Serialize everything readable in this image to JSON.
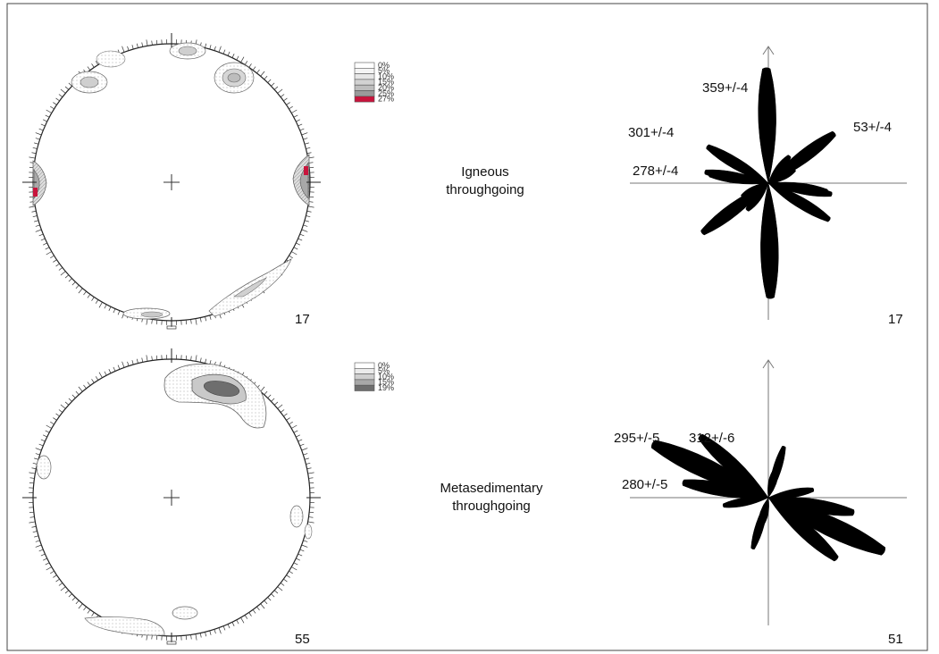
{
  "figure": {
    "panels": [
      {
        "label_lines": [
          "Igneous",
          "throughgoing"
        ],
        "stereonet_count": "17",
        "rose_count": "17",
        "legend": {
          "entries": [
            "0%",
            "5%",
            "10%",
            "15%",
            "20%",
            "25%",
            "27%"
          ],
          "colors": [
            "#ffffff",
            "#f4f4f4",
            "#e6e6e6",
            "#d2d2d2",
            "#bdbdbd",
            "#9a9a9a",
            "#c8143c"
          ]
        }
      },
      {
        "label_lines": [
          "Metasedimentary",
          "throughgoing"
        ],
        "stereonet_count": "55",
        "rose_count": "51",
        "legend": {
          "entries": [
            "0%",
            "5%",
            "10%",
            "15%",
            "19%"
          ],
          "colors": [
            "#ffffff",
            "#ebebeb",
            "#cfcfcf",
            "#a8a8a8",
            "#6e6e6e"
          ]
        }
      }
    ]
  },
  "chart_data": [
    {
      "type": "rose",
      "panel": "Igneous throughgoing",
      "direction_unit": "degrees azimuth",
      "bidirectional": true,
      "petals": [
        {
          "azimuth": 359,
          "relative_length": 1.0
        },
        {
          "azimuth": 301,
          "relative_length": 0.62
        },
        {
          "azimuth": 278,
          "relative_length": 0.52
        },
        {
          "azimuth": 53,
          "relative_length": 0.72
        },
        {
          "azimuth": 38,
          "relative_length": 0.3
        },
        {
          "azimuth": 61,
          "relative_length": 0.2
        },
        {
          "azimuth": 100,
          "relative_length": 0.56
        },
        {
          "azimuth": 123,
          "relative_length": 0.48
        },
        {
          "azimuth": 108,
          "relative_length": 0.22
        },
        {
          "azimuth": 243,
          "relative_length": 0.26
        }
      ],
      "annotations": [
        "359+/-4",
        "301+/-4",
        "278+/-4",
        "53+/-4"
      ],
      "count": "17"
    },
    {
      "type": "rose",
      "panel": "Metasedimentary throughgoing",
      "direction_unit": "degrees azimuth",
      "bidirectional": true,
      "petals": [
        {
          "azimuth": 295,
          "relative_length": 1.0
        },
        {
          "azimuth": 312,
          "relative_length": 0.72
        },
        {
          "azimuth": 280,
          "relative_length": 0.68
        },
        {
          "azimuth": 17,
          "relative_length": 0.42
        },
        {
          "azimuth": 80,
          "relative_length": 0.36
        },
        {
          "azimuth": 15,
          "relative_length": 0.24
        }
      ],
      "annotations": [
        "295+/-5",
        "312+/-6",
        "280+/-5"
      ],
      "count": "51"
    },
    {
      "type": "stereonet",
      "panel": "Igneous throughgoing",
      "density_levels_percent": [
        0,
        5,
        10,
        15,
        20,
        25,
        27
      ],
      "count": "17"
    },
    {
      "type": "stereonet",
      "panel": "Metasedimentary throughgoing",
      "density_levels_percent": [
        0,
        5,
        10,
        15,
        19
      ],
      "count": "55"
    }
  ]
}
